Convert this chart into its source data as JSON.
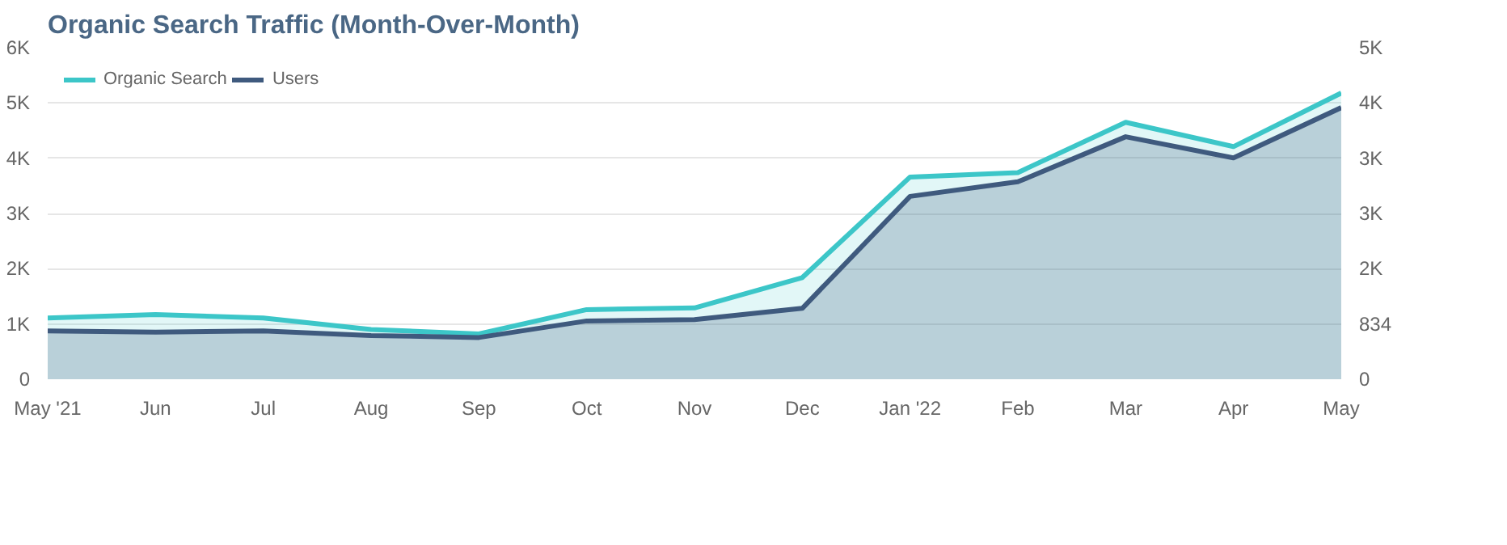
{
  "chart_data": {
    "type": "area",
    "title": "Organic Search Traffic (Month-Over-Month)",
    "categories": [
      "May '21",
      "Jun",
      "Jul",
      "Aug",
      "Sep",
      "Oct",
      "Nov",
      "Dec",
      "Jan '22",
      "Feb",
      "Mar",
      "Apr",
      "May"
    ],
    "series": [
      {
        "name": "Organic Search",
        "color": "#3cc6c8",
        "values": [
          1110,
          1170,
          1110,
          900,
          820,
          1260,
          1290,
          1840,
          3660,
          3740,
          4650,
          4210,
          5180
        ]
      },
      {
        "name": "Users",
        "color": "#3f5a7e",
        "axis": "y2",
        "values": [
          730,
          710,
          730,
          660,
          630,
          880,
          900,
          1070,
          2760,
          2980,
          3660,
          3340,
          4100
        ]
      }
    ],
    "ylim": [
      0,
      6000
    ],
    "yticks": [
      0,
      {
        "value": 1000,
        "label": "1K"
      },
      {
        "value": 2000,
        "label": "2K"
      },
      {
        "value": 3000,
        "label": "3K"
      },
      {
        "value": 4000,
        "label": "4K"
      },
      {
        "value": 5000,
        "label": "5K"
      },
      {
        "value": 6000,
        "label": "6K"
      }
    ],
    "y2lim": [
      0,
      5004
    ],
    "y2ticks": [
      0,
      834,
      {
        "value": 1668,
        "label": "2K"
      },
      {
        "value": 2502,
        "label": "3K"
      },
      {
        "value": 3336,
        "label": "3K"
      },
      {
        "value": 4170,
        "label": "4K"
      },
      {
        "value": 5004,
        "label": "5K"
      }
    ],
    "grid": "y",
    "legend": "top left",
    "marker": "none",
    "line_style": "solid"
  }
}
